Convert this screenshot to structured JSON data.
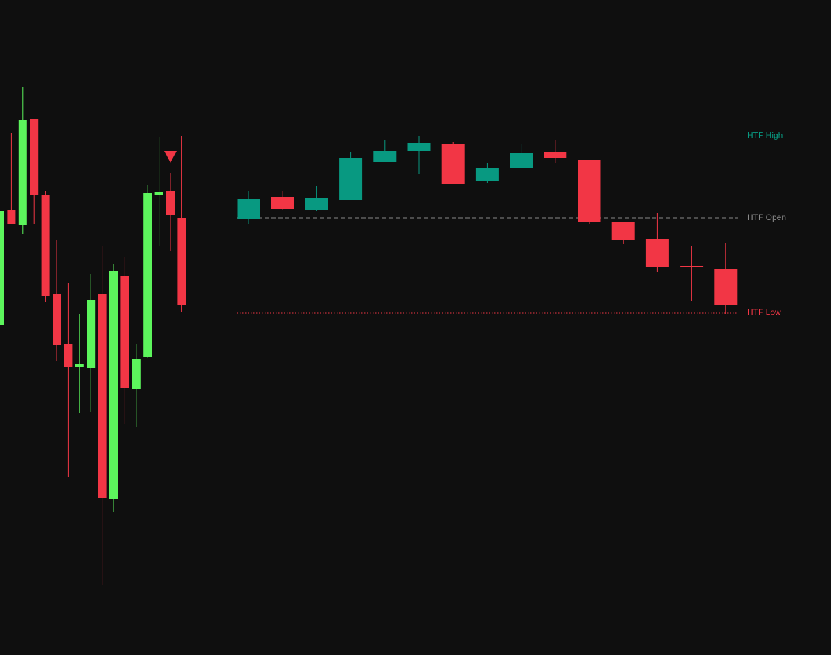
{
  "chart_data": [
    {
      "type": "candlestick",
      "up_color": "#5cf55c",
      "down_color": "#f23645",
      "ylim": [
        0,
        946
      ],
      "open": [
        476,
        643,
        621,
        774,
        664,
        521,
        449,
        416,
        415,
        522,
        226,
        548,
        384,
        431,
        664,
        670,
        631
      ],
      "high": [
        641,
        754,
        821,
        774,
        670,
        599,
        537,
        492,
        550,
        591,
        564,
        575,
        449,
        679,
        748,
        696,
        750
      ],
      "low": [
        476,
        622,
        608,
        623,
        510,
        425,
        257,
        350,
        351,
        101,
        206,
        334,
        330,
        429,
        590,
        584,
        495
      ],
      "close": [
        641,
        622,
        772,
        665,
        518,
        448,
        416,
        421,
        513,
        227,
        555,
        385,
        427,
        667,
        668,
        636,
        506
      ],
      "markers": [
        {
          "index": 15,
          "shape": "triangle-down",
          "color": "#f23645"
        }
      ]
    },
    {
      "type": "candlestick",
      "up_color": "#089981",
      "down_color": "#f23645",
      "ylim": [
        0,
        946
      ],
      "open": [
        630,
        661,
        642,
        657,
        712,
        728,
        738,
        684,
        704,
        726,
        715,
        626,
        601,
        562,
        557
      ],
      "high": [
        670,
        670,
        678,
        727,
        744,
        749,
        741,
        711,
        738,
        744,
        715,
        626,
        638,
        591,
        595
      ],
      "low": [
        623,
        642,
        641,
        657,
        712,
        694,
        680,
        681,
        704,
        711,
        622,
        593,
        553,
        511,
        493
      ],
      "close": [
        659,
        644,
        660,
        718,
        728,
        739,
        680,
        704,
        725,
        718,
        625,
        599,
        561,
        560,
        506
      ],
      "levels": [
        {
          "label": "HTF High",
          "value": 749.5,
          "color": "#089981",
          "style": "dotted"
        },
        {
          "label": "HTF Open",
          "value": 631,
          "color": "#8a8a8a",
          "style": "dashed"
        },
        {
          "label": "HTF Low",
          "value": 494,
          "color": "#f23645",
          "style": "dotted"
        }
      ]
    }
  ]
}
